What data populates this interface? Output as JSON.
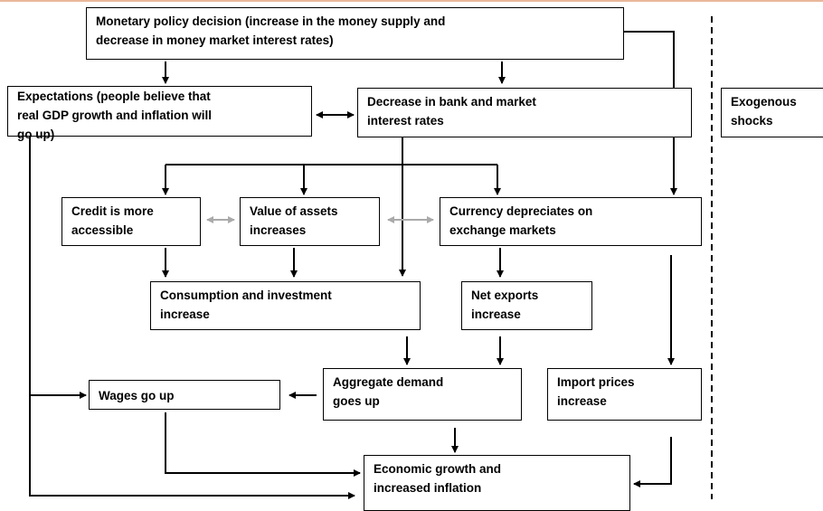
{
  "nodes": [
    {
      "lines": [
        "Monetary policy decision (increase in the money supply and",
        "decrease in money market interest rates)"
      ]
    },
    {
      "lines": [
        "Expectations (people believe that",
        "real GDP growth and inflation will",
        "go up)"
      ]
    },
    {
      "lines": [
        "Decrease in bank and market",
        "interest rates"
      ]
    },
    {
      "lines": [
        "Exogenous",
        "shocks"
      ]
    },
    {
      "lines": [
        "Credit is more",
        "accessible"
      ]
    },
    {
      "lines": [
        "Value of assets",
        "increases"
      ]
    },
    {
      "lines": [
        "Currency depreciates on",
        "exchange markets"
      ]
    },
    {
      "lines": [
        "Consumption and investment",
        "increase"
      ]
    },
    {
      "lines": [
        "Net exports",
        "increase"
      ]
    },
    {
      "lines": [
        "Wages go up"
      ]
    },
    {
      "lines": [
        "Aggregate demand",
        "goes up"
      ]
    },
    {
      "lines": [
        "Import prices",
        "increase"
      ]
    },
    {
      "lines": [
        "Economic growth and",
        "increased inflation"
      ]
    }
  ]
}
